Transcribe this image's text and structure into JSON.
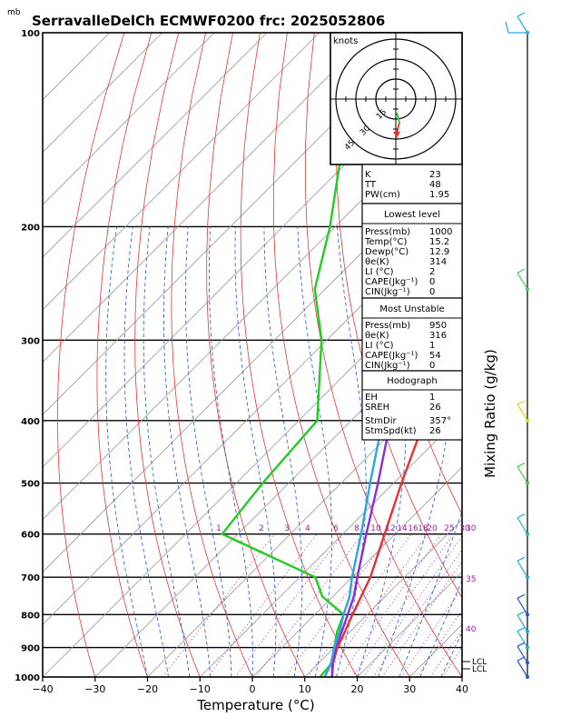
{
  "header": {
    "unit": "mb",
    "title": "SerravalleDelCh  ECMWF0200  frc: 2025052806"
  },
  "chart_data": {
    "type": "skew-t log-p sounding",
    "title": "SerravalleDelCh  ECMWF0200  frc: 2025052806",
    "xlabel": "Temperature (°C)",
    "ylabel_right": "Mixing Ratio (g/kg)",
    "xlim": [
      -40,
      40
    ],
    "plim": [
      1000,
      100
    ],
    "x_ticks": [
      "−40",
      "−30",
      "−20",
      "−10",
      "0",
      "10",
      "20",
      "30",
      "40"
    ],
    "p_ticks": [
      "100",
      "200",
      "300",
      "400",
      "500",
      "600",
      "700",
      "800",
      "900",
      "1000"
    ],
    "mixing_ratio_labels": [
      "1",
      "2",
      "3",
      "4",
      "6",
      "8",
      "10",
      "12",
      "14",
      "16",
      "18",
      "20",
      "25",
      "30"
    ],
    "mixing_ratio_side_labels": [
      "30",
      "35",
      "40"
    ],
    "lcl_labels": [
      "LCL",
      "LCL"
    ],
    "series": [
      {
        "name": "Temperature",
        "color": "#e83030",
        "points": [
          [
            1000,
            15.2
          ],
          [
            950,
            12.7
          ],
          [
            900,
            10.6
          ],
          [
            850,
            9.0
          ],
          [
            800,
            7.2
          ],
          [
            700,
            3.5
          ],
          [
            600,
            -2.0
          ],
          [
            500,
            -8.5
          ],
          [
            400,
            -16.0
          ],
          [
            300,
            -28.0
          ],
          [
            250,
            -37.5
          ],
          [
            200,
            -38.5
          ],
          [
            150,
            -43.0
          ],
          [
            100,
            -47.0
          ]
        ]
      },
      {
        "name": "Dewpoint",
        "color": "#22cc22",
        "points": [
          [
            1000,
            12.9
          ],
          [
            950,
            12.5
          ],
          [
            900,
            10.0
          ],
          [
            850,
            7.5
          ],
          [
            800,
            5.5
          ],
          [
            750,
            -2.0
          ],
          [
            700,
            -7.0
          ],
          [
            600,
            -33.0
          ],
          [
            500,
            -35.0
          ],
          [
            400,
            -36.5
          ],
          [
            300,
            -51.0
          ],
          [
            250,
            -62.0
          ],
          [
            200,
            -71.0
          ],
          [
            150,
            -84.0
          ],
          [
            100,
            -104.0
          ]
        ]
      },
      {
        "name": "Parcel",
        "color": "#8a2be2",
        "points": [
          [
            1000,
            15.2
          ],
          [
            950,
            12.5
          ],
          [
            900,
            10.3
          ],
          [
            850,
            8.4
          ],
          [
            800,
            6.3
          ],
          [
            750,
            4.0
          ],
          [
            700,
            1.0
          ],
          [
            600,
            -5.5
          ],
          [
            500,
            -13.0
          ],
          [
            400,
            -22.5
          ],
          [
            300,
            -36.0
          ],
          [
            250,
            -45.5
          ],
          [
            200,
            -57.0
          ],
          [
            150,
            -72.0
          ],
          [
            100,
            -95.0
          ]
        ]
      },
      {
        "name": "Wet-bulb",
        "color": "#2aa6e0",
        "points": [
          [
            1000,
            13.8
          ],
          [
            950,
            12.3
          ],
          [
            900,
            10.0
          ],
          [
            850,
            8.0
          ],
          [
            800,
            5.5
          ],
          [
            750,
            3.2
          ],
          [
            700,
            0.0
          ],
          [
            600,
            -6.5
          ],
          [
            500,
            -14.5
          ],
          [
            400,
            -24.0
          ],
          [
            300,
            -37.5
          ],
          [
            250,
            -47.0
          ],
          [
            200,
            -59.0
          ],
          [
            150,
            -75.0
          ],
          [
            100,
            -97.0
          ]
        ]
      }
    ]
  },
  "hodograph": {
    "unit": "knots",
    "ring_labels": [
      "15",
      "30",
      "45"
    ]
  },
  "indices": {
    "general": [
      {
        "k": "K",
        "v": "23"
      },
      {
        "k": "TT",
        "v": "48"
      },
      {
        "k": "PW(cm)",
        "v": "1.95"
      }
    ],
    "lowest_title": "Lowest level",
    "lowest": [
      {
        "k": "Press(mb)",
        "v": "1000"
      },
      {
        "k": "Temp(°C)",
        "v": "15.2"
      },
      {
        "k": "Dewp(°C)",
        "v": "12.9"
      },
      {
        "k": "θe(K)",
        "v": "314"
      },
      {
        "k": "LI (°C)",
        "v": "2"
      },
      {
        "k": "CAPE(Jkg⁻¹)",
        "v": "0"
      },
      {
        "k": "CIN(Jkg⁻¹)",
        "v": "0"
      }
    ],
    "unstable_title": "Most Unstable",
    "unstable": [
      {
        "k": "Press(mb)",
        "v": "950"
      },
      {
        "k": "θe(K)",
        "v": "316"
      },
      {
        "k": "LI (°C)",
        "v": "1"
      },
      {
        "k": "CAPE(Jkg⁻¹)",
        "v": "54"
      },
      {
        "k": "CIN(Jkg⁻¹)",
        "v": "0"
      }
    ],
    "hodo_title": "Hodograph",
    "hodo": [
      {
        "k": "EH",
        "v": "1"
      },
      {
        "k": "SREH",
        "v": "26"
      }
    ],
    "storm": [
      {
        "k": "StmDir",
        "v": "357°"
      },
      {
        "k": "StmSpd(kt)",
        "v": "26"
      }
    ]
  },
  "colors": {
    "temperature": "#e83030",
    "dewpoint": "#22cc22",
    "parcel": "#8a2be2",
    "wetbulb": "#2aa6e0",
    "mixing": "#a020a0",
    "isotherm": "#9a9a9a",
    "dryadiabat": "#ee3333",
    "moistadiabat": "#2255dd",
    "wind": "#00aacc"
  }
}
